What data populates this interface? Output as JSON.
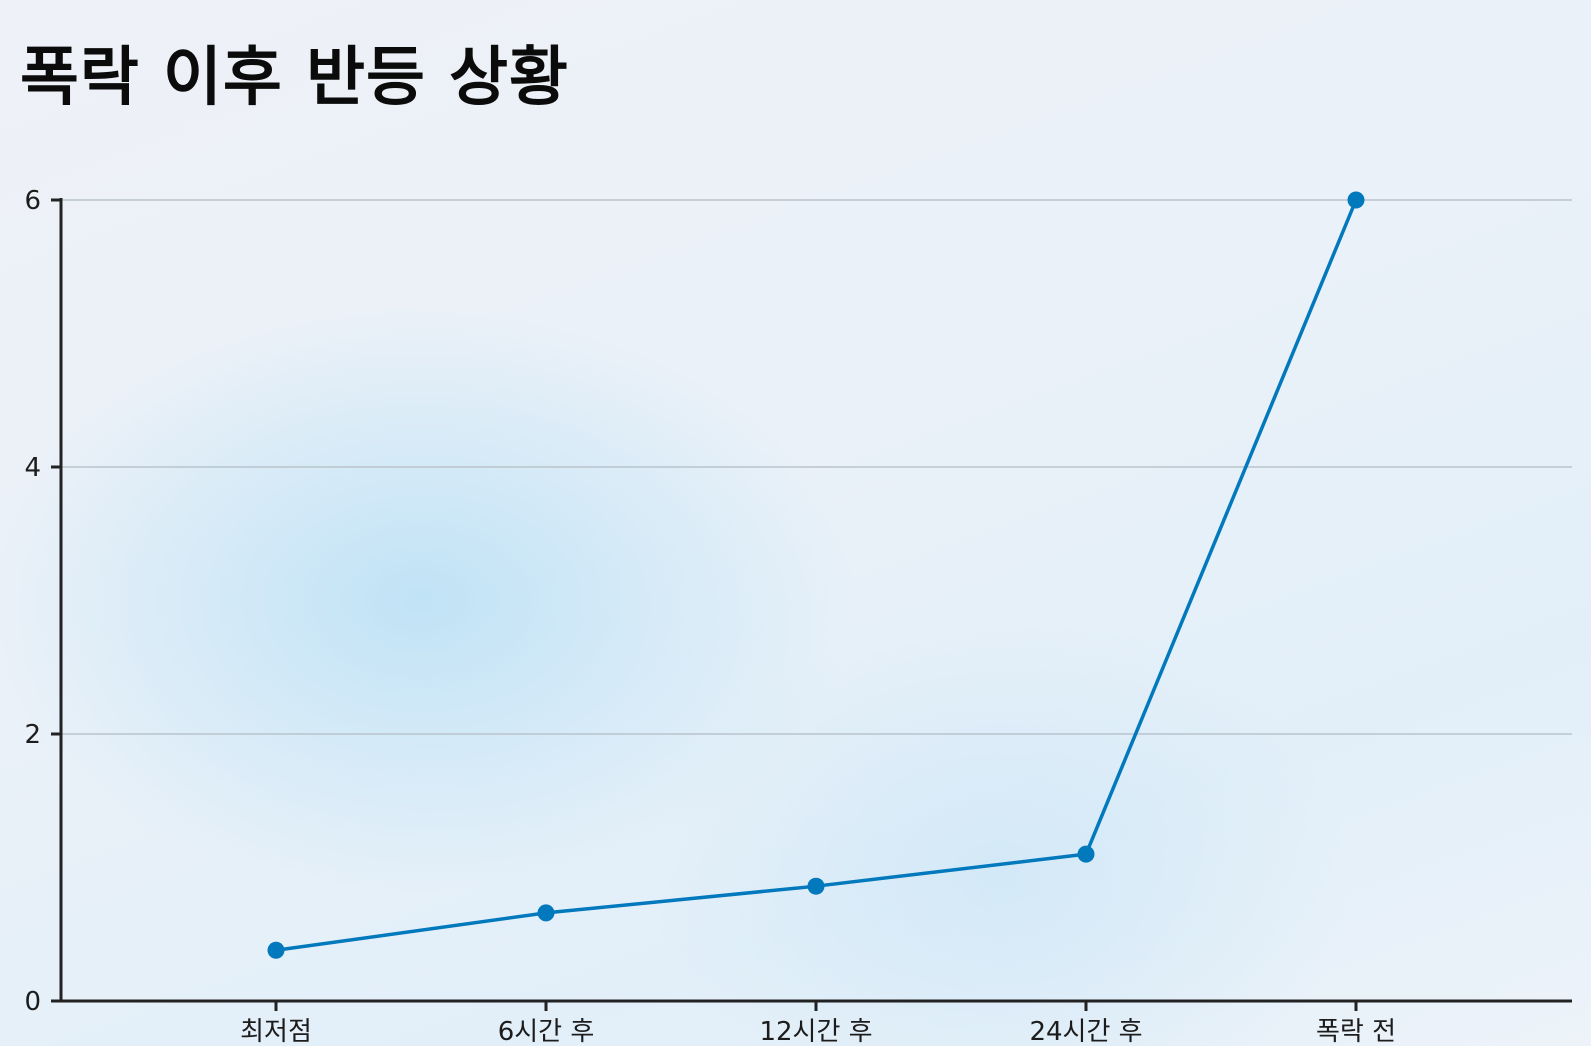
{
  "title": "폭락 이후 반등 상황",
  "chart_data": {
    "type": "line",
    "title": "폭락 이후 반등 상황",
    "xlabel": "",
    "ylabel": "",
    "categories": [
      "최저점",
      "6시간 후",
      "12시간 후",
      "24시간 후",
      "폭락 전"
    ],
    "series": [
      {
        "values": [
          0.38,
          0.66,
          0.86,
          1.1,
          6.0
        ]
      }
    ],
    "ylim": [
      0,
      6
    ],
    "yticks": [
      0,
      2,
      4,
      6
    ],
    "grid": true,
    "colors": {
      "line": "#0278bd",
      "grid": "#b9c4cc",
      "axis": "#222222"
    }
  }
}
